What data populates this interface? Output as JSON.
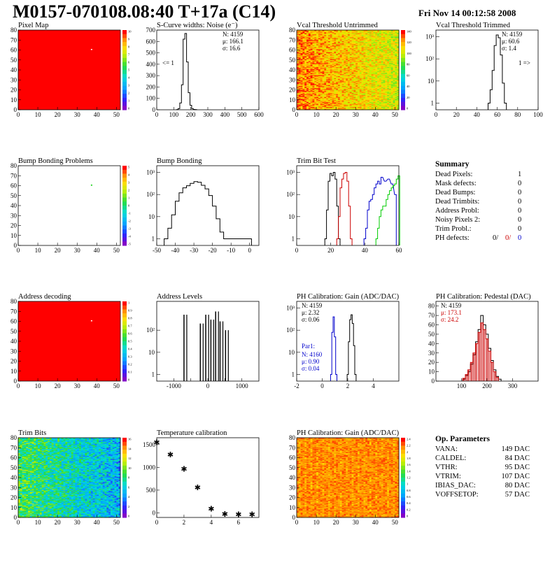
{
  "header": {
    "title": "M0157-070108.08:40 T+17a (C14)",
    "date": "Fri Nov 14 00:12:58 2008"
  },
  "summary": {
    "title": "Summary",
    "rows": [
      {
        "label": "Dead Pixels:",
        "value": "1"
      },
      {
        "label": "Mask defects:",
        "value": "0"
      },
      {
        "label": "Dead Bumps:",
        "value": "0"
      },
      {
        "label": "Dead Trimbits:",
        "value": "0"
      },
      {
        "label": "Address Probl:",
        "value": "0"
      },
      {
        "label": "Noisy Pixels 2:",
        "value": "0"
      },
      {
        "label": "Trim Probl.:",
        "value": "0"
      }
    ],
    "ph_label": "PH defects:",
    "ph_values": [
      "0/",
      "0/",
      "0"
    ],
    "ph_colors": [
      "#000000",
      "#cc0000",
      "#0000cc"
    ]
  },
  "op_parameters": {
    "title": "Op. Parameters",
    "rows": [
      {
        "label": "VANA:",
        "value": "149 DAC"
      },
      {
        "label": "CALDEL:",
        "value": "84 DAC"
      },
      {
        "label": "VTHR:",
        "value": "95 DAC"
      },
      {
        "label": "VTRIM:",
        "value": "107 DAC"
      },
      {
        "label": "IBIAS_DAC:",
        "value": "80 DAC"
      },
      {
        "label": "VOFFSETOP:",
        "value": "57 DAC"
      }
    ]
  },
  "chart_data": [
    {
      "id": "pixel-map",
      "type": "heatmap",
      "title": "Pixel Map",
      "xlim": [
        0,
        52
      ],
      "ylim": [
        0,
        80
      ],
      "xticks": [
        0,
        10,
        20,
        30,
        40,
        50
      ],
      "yticks": [
        0,
        10,
        20,
        30,
        40,
        50,
        60,
        70,
        80
      ],
      "fill_color": "#ff0000",
      "special_pixels": [
        {
          "x": 37,
          "y": 60,
          "color": "#ffffff"
        }
      ],
      "zlim": [
        0,
        10
      ],
      "palette_ticks": [
        "10",
        "9",
        "8",
        "7",
        "6",
        "5",
        "4",
        "3",
        "2",
        "1",
        "0"
      ]
    },
    {
      "id": "scurve-widths",
      "type": "line",
      "title": "S-Curve widths: Noise (e⁻)",
      "xlim": [
        0,
        600
      ],
      "ylim": [
        0,
        700
      ],
      "xticks": [
        0,
        100,
        200,
        300,
        400,
        500,
        600
      ],
      "yticks": [
        0,
        100,
        200,
        300,
        400,
        500,
        600,
        700
      ],
      "x": [
        120,
        130,
        140,
        150,
        160,
        170,
        180,
        190,
        200,
        210,
        220,
        230
      ],
      "values": [
        2,
        10,
        60,
        220,
        620,
        670,
        420,
        150,
        40,
        10,
        3,
        1
      ],
      "stats": [
        "N: 4159",
        "μ: 166.1",
        "σ: 16.6"
      ],
      "annotation": "<= 1"
    },
    {
      "id": "vcal-untrimmed",
      "type": "heatmap",
      "title": "Vcal Threshold Untrimmed",
      "xlim": [
        0,
        52
      ],
      "ylim": [
        0,
        80
      ],
      "xticks": [
        0,
        10,
        20,
        30,
        40,
        50
      ],
      "yticks": [
        0,
        10,
        20,
        30,
        40,
        50,
        60,
        70,
        80
      ],
      "zlim": [
        0,
        150
      ],
      "palette_ticks": [
        "140",
        "120",
        "100",
        "80",
        "60",
        "40",
        "20",
        "0"
      ]
    },
    {
      "id": "vcal-trimmed",
      "type": "line",
      "title": "Vcal Threshold Trimmed",
      "xlim": [
        0,
        100
      ],
      "ylog": true,
      "ylim": [
        0.5,
        2000
      ],
      "xticks": [
        0,
        20,
        40,
        60,
        80,
        100
      ],
      "yticklabels": [
        "1",
        "10",
        "10²",
        "10³"
      ],
      "x": [
        52,
        54,
        56,
        58,
        60,
        62,
        64,
        66,
        68
      ],
      "values": [
        1,
        4,
        30,
        400,
        1200,
        900,
        150,
        8,
        1
      ],
      "stats": [
        "N: 4159",
        "μ: 60.6",
        "σ: 1.4"
      ],
      "annotation": "1 =>"
    },
    {
      "id": "bump-bonding-problems",
      "type": "heatmap",
      "title": "Bump Bonding Problems",
      "xlim": [
        0,
        52
      ],
      "ylim": [
        0,
        80
      ],
      "xticks": [
        0,
        10,
        20,
        30,
        40,
        50
      ],
      "yticks": [
        0,
        10,
        20,
        30,
        40,
        50,
        60,
        70,
        80
      ],
      "fill_color": "#ffffff",
      "special_pixels": [
        {
          "x": 37,
          "y": 60,
          "color": "#00cc00"
        }
      ],
      "zlim": [
        -5,
        5
      ],
      "palette_ticks": [
        "5",
        "4",
        "3",
        "2",
        "1",
        "0",
        "-1",
        "-2",
        "-3",
        "-4",
        "-5"
      ]
    },
    {
      "id": "bump-bonding",
      "type": "line",
      "title": "Bump Bonding",
      "xlim": [
        -50,
        5
      ],
      "ylog": true,
      "ylim": [
        0.5,
        2000
      ],
      "xticks": [
        -50,
        -40,
        -30,
        -20,
        -10,
        0
      ],
      "yticklabels": [
        "1",
        "10",
        "10²",
        "10³"
      ],
      "x": [
        -45,
        -43,
        -41,
        -39,
        -37,
        -35,
        -33,
        -31,
        -29,
        -27,
        -25,
        -23,
        -21,
        -19,
        -17,
        -15,
        -13,
        0
      ],
      "values": [
        1,
        3,
        12,
        50,
        120,
        200,
        250,
        320,
        380,
        360,
        260,
        180,
        90,
        30,
        8,
        2,
        1,
        1
      ]
    },
    {
      "id": "trim-bit-test",
      "type": "line",
      "title": "Trim Bit Test",
      "xlim": [
        0,
        60
      ],
      "ylog": true,
      "ylim": [
        0.5,
        2000
      ],
      "xticks": [
        0,
        20,
        40,
        60
      ],
      "yticklabels": [
        "1",
        "10",
        "10²",
        "10³"
      ],
      "series": [
        {
          "color": "#000000",
          "x": [
            17,
            18,
            19,
            20,
            21,
            22,
            23,
            24,
            25
          ],
          "values": [
            1,
            20,
            400,
            900,
            700,
            1000,
            500,
            30,
            1
          ]
        },
        {
          "color": "#cc0000",
          "x": [
            24,
            25,
            26,
            27,
            28,
            29,
            30,
            31,
            32
          ],
          "values": [
            1,
            10,
            200,
            500,
            900,
            1000,
            400,
            30,
            1
          ]
        },
        {
          "color": "#0000cc",
          "x": [
            40,
            41,
            42,
            43,
            44,
            45,
            46,
            47,
            48,
            49,
            50,
            52,
            54,
            56,
            58
          ],
          "values": [
            1,
            3,
            20,
            50,
            60,
            100,
            200,
            300,
            400,
            300,
            600,
            400,
            500,
            300,
            100
          ]
        },
        {
          "color": "#00cc00",
          "x": [
            47,
            48,
            49,
            50,
            51,
            52,
            53,
            54,
            55,
            56,
            57,
            58,
            59,
            60
          ],
          "values": [
            1,
            3,
            10,
            20,
            30,
            30,
            60,
            100,
            150,
            200,
            250,
            300,
            500,
            700
          ]
        }
      ]
    },
    {
      "id": "address-decoding",
      "type": "heatmap",
      "title": "Address decoding",
      "xlim": [
        0,
        52
      ],
      "ylim": [
        0,
        80
      ],
      "xticks": [
        0,
        10,
        20,
        30,
        40,
        50
      ],
      "yticks": [
        0,
        10,
        20,
        30,
        40,
        50,
        60,
        70,
        80
      ],
      "fill_color": "#ff0000",
      "special_pixels": [
        {
          "x": 37,
          "y": 60,
          "color": "#ffffff"
        }
      ],
      "zlim": [
        0,
        1
      ],
      "palette_ticks": [
        "1",
        "0.9",
        "0.8",
        "0.7",
        "0.6",
        "0.5",
        "0.4",
        "0.3",
        "0.2",
        "0.1",
        "0"
      ]
    },
    {
      "id": "address-levels",
      "type": "line",
      "title": "Address Levels",
      "xlim": [
        -1500,
        1500
      ],
      "ylog": true,
      "ylim": [
        0.5,
        2000
      ],
      "xticks": [
        -1000,
        -500,
        0,
        500,
        1000
      ],
      "xticklabels": [
        "-1000",
        "",
        "0",
        "",
        "1000"
      ],
      "yticklabels": [
        "1",
        "10",
        "10²"
      ],
      "x": [
        -700,
        -220,
        -60,
        90,
        230,
        360,
        520
      ],
      "values": [
        500,
        200,
        500,
        300,
        700,
        250,
        100
      ]
    },
    {
      "id": "ph-gain",
      "type": "line",
      "title": "PH Calibration: Gain (ADC/DAC)",
      "xlim": [
        -2,
        6
      ],
      "ylog": true,
      "ylim": [
        0.5,
        2000
      ],
      "xticks": [
        -2,
        0,
        2,
        4
      ],
      "yticklabels": [
        "1",
        "10",
        "10²",
        "10³"
      ],
      "series": [
        {
          "color": "#000000",
          "x": [
            2.0,
            2.1,
            2.2,
            2.3,
            2.4,
            2.5,
            2.6
          ],
          "values": [
            1,
            30,
            300,
            500,
            200,
            20,
            1
          ]
        },
        {
          "color": "#0000cc",
          "x": [
            0.7,
            0.8,
            0.9,
            1.0,
            1.1
          ],
          "values": [
            1,
            80,
            400,
            50,
            1
          ]
        }
      ],
      "stats": [
        "N: 4159",
        "μ: 2.32",
        "σ: 0.06"
      ],
      "stats2_title": "Par1:",
      "stats2": [
        "N: 4160",
        "μ: 0.90",
        "σ: 0.04"
      ]
    },
    {
      "id": "ph-pedestal",
      "type": "line",
      "title": "PH Calibration: Pedestal (DAC)",
      "xlim": [
        0,
        400
      ],
      "ylim": [
        0,
        85
      ],
      "xticks": [
        100,
        200,
        300
      ],
      "yticks": [
        0,
        10,
        20,
        30,
        40,
        50,
        60,
        70,
        80
      ],
      "series": [
        {
          "color": "#000000",
          "x": [
            110,
            120,
            130,
            140,
            150,
            160,
            170,
            180,
            190,
            200,
            210,
            220,
            230,
            240,
            250
          ],
          "values": [
            2,
            6,
            10,
            18,
            28,
            42,
            55,
            70,
            60,
            50,
            35,
            22,
            12,
            5,
            2
          ]
        },
        {
          "color": "#cc0000",
          "x": [
            110,
            120,
            130,
            140,
            150,
            160,
            170,
            180,
            190,
            200,
            210,
            220,
            230,
            240
          ],
          "values": [
            3,
            7,
            12,
            20,
            30,
            40,
            52,
            62,
            55,
            45,
            32,
            20,
            10,
            4
          ]
        }
      ],
      "stats": [
        "N: 4159"
      ],
      "stats_red": [
        "μ: 173.1",
        "σ: 24.2"
      ]
    },
    {
      "id": "trim-bits",
      "type": "heatmap",
      "title": "Trim Bits",
      "xlim": [
        0,
        52
      ],
      "ylim": [
        0,
        80
      ],
      "xticks": [
        0,
        10,
        20,
        30,
        40,
        50
      ],
      "yticks": [
        0,
        10,
        20,
        30,
        40,
        50,
        60,
        70,
        80
      ],
      "zlim": [
        0,
        16
      ],
      "palette_ticks": [
        "16",
        "14",
        "12",
        "10",
        "8",
        "6",
        "4",
        "2",
        "0"
      ]
    },
    {
      "id": "temperature-calibration",
      "type": "scatter",
      "title": "Temperature calibration",
      "xlim": [
        0,
        7.5
      ],
      "ylim": [
        -100,
        1650
      ],
      "xticks": [
        0,
        2,
        4,
        6
      ],
      "yticks": [
        0,
        500,
        1000,
        1500
      ],
      "x": [
        0,
        1,
        2,
        3,
        4,
        5,
        6,
        7
      ],
      "values": [
        1550,
        1280,
        970,
        560,
        90,
        -20,
        -30,
        -30
      ]
    },
    {
      "id": "ph-gain-map",
      "type": "heatmap",
      "title": "PH Calibration: Gain (ADC/DAC)",
      "xlim": [
        0,
        52
      ],
      "ylim": [
        0,
        80
      ],
      "xticks": [
        0,
        10,
        20,
        30,
        40,
        50
      ],
      "yticks": [
        0,
        10,
        20,
        30,
        40,
        50,
        60,
        70,
        80
      ],
      "zlim": [
        0,
        2.4
      ],
      "palette_ticks": [
        "2.4",
        "2.2",
        "2",
        "1.8",
        "1.6",
        "1.4",
        "1.2",
        "1",
        "0.8",
        "0.6",
        "0.4",
        "0.2",
        "0"
      ]
    }
  ]
}
